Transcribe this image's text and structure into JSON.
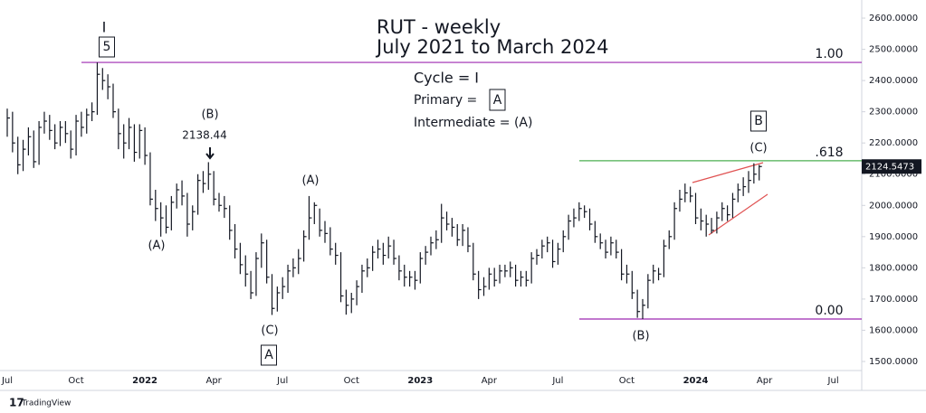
{
  "chart_data": {
    "type": "ohlc",
    "title": "RUT - weekly",
    "subtitle": "July 2021 to March 2024",
    "legend_lines": [
      "Cycle = I",
      "Primary =",
      "A",
      "Intermediate = (A)"
    ],
    "annotations": [
      "I",
      "5",
      "(B)",
      "(A)",
      "(C)",
      "A",
      "(A)",
      "(B)",
      "(C)",
      "B"
    ],
    "watermark": "TradingView",
    "color": "#131722",
    "grid": false,
    "categories": [
      "Jul",
      null,
      null,
      null,
      null,
      null,
      null,
      null,
      null,
      null,
      null,
      null,
      null,
      "Oct",
      null,
      null,
      null,
      null,
      null,
      null,
      null,
      null,
      null,
      null,
      null,
      null,
      "2022",
      null,
      null,
      null,
      null,
      null,
      null,
      null,
      null,
      null,
      null,
      null,
      null,
      "Apr",
      null,
      null,
      null,
      null,
      null,
      null,
      null,
      null,
      null,
      null,
      null,
      null,
      "Jul",
      null,
      null,
      null,
      null,
      null,
      null,
      null,
      null,
      null,
      null,
      null,
      null,
      "Oct",
      null,
      null,
      null,
      null,
      null,
      null,
      null,
      null,
      null,
      null,
      null,
      null,
      "2023",
      null,
      null,
      null,
      null,
      null,
      null,
      null,
      null,
      null,
      null,
      null,
      null,
      "Apr",
      null,
      null,
      null,
      null,
      null,
      null,
      null,
      null,
      null,
      null,
      null,
      null,
      "Jul",
      null,
      null,
      null,
      null,
      null,
      null,
      null,
      null,
      null,
      null,
      null,
      null,
      "Oct",
      null,
      null,
      null,
      null,
      null,
      null,
      null,
      null,
      null,
      null,
      null,
      null,
      "2024",
      null,
      null,
      null,
      null,
      null,
      null,
      null,
      null,
      null,
      null,
      null,
      null,
      "Apr",
      null,
      null,
      null,
      null,
      null,
      null,
      null,
      null,
      null,
      null,
      null,
      null,
      "Jul",
      null,
      null,
      null
    ],
    "high": [
      2310,
      2300,
      2220,
      2210,
      2250,
      2240,
      2270,
      2300,
      2290,
      2260,
      2270,
      2270,
      2240,
      2290,
      2300,
      2310,
      2330,
      2458,
      2440,
      2420,
      2390,
      2310,
      2260,
      2280,
      2260,
      2260,
      2250,
      2170,
      2050,
      2010,
      2000,
      2030,
      2070,
      2080,
      2040,
      2000,
      2100,
      2110,
      2138.44,
      2110,
      2040,
      2030,
      2000,
      1940,
      1880,
      1840,
      1790,
      1850,
      1910,
      1890,
      1780,
      1740,
      1770,
      1810,
      1830,
      1860,
      1920,
      2030,
      2010,
      1990,
      1950,
      1930,
      1880,
      1850,
      1730,
      1720,
      1760,
      1810,
      1830,
      1870,
      1890,
      1880,
      1900,
      1890,
      1840,
      1810,
      1790,
      1790,
      1850,
      1870,
      1900,
      1920,
      2005,
      1980,
      1960,
      1940,
      1940,
      1930,
      1880,
      1790,
      1770,
      1800,
      1800,
      1810,
      1810,
      1820,
      1810,
      1790,
      1790,
      1850,
      1860,
      1890,
      1900,
      1890,
      1880,
      1920,
      1970,
      1990,
      2010,
      2000,
      1990,
      1950,
      1910,
      1890,
      1900,
      1890,
      1860,
      1810,
      1790,
      1730,
      1700,
      1780,
      1810,
      1800,
      1890,
      1920,
      2010,
      2050,
      2070,
      2060,
      2040,
      1990,
      1970,
      1960,
      1980,
      2010,
      2000,
      2040,
      2070,
      2090,
      2110,
      2135,
      2130,
      null,
      null,
      null,
      null,
      null,
      null,
      null,
      null,
      null,
      null,
      null,
      null,
      null,
      null,
      null,
      null,
      null
    ],
    "low": [
      2220,
      2170,
      2100,
      2110,
      2160,
      2120,
      2130,
      2230,
      2210,
      2180,
      2190,
      2200,
      2150,
      2160,
      2220,
      2230,
      2270,
      2290,
      2370,
      2340,
      2280,
      2180,
      2150,
      2180,
      2140,
      2150,
      2130,
      2000,
      1950,
      1900,
      1910,
      1920,
      1990,
      2000,
      1900,
      1920,
      1970,
      2040,
      2050,
      2000,
      1980,
      1960,
      1890,
      1830,
      1780,
      1740,
      1700,
      1710,
      1800,
      1750,
      1649,
      1660,
      1700,
      1720,
      1770,
      1780,
      1820,
      1890,
      1940,
      1900,
      1880,
      1840,
      1810,
      1690,
      1650,
      1655,
      1680,
      1720,
      1770,
      1790,
      1830,
      1810,
      1830,
      1810,
      1760,
      1740,
      1740,
      1730,
      1750,
      1810,
      1840,
      1860,
      1880,
      1920,
      1900,
      1870,
      1870,
      1850,
      1760,
      1700,
      1710,
      1730,
      1740,
      1750,
      1770,
      1770,
      1740,
      1740,
      1740,
      1750,
      1810,
      1830,
      1850,
      1800,
      1810,
      1850,
      1890,
      1930,
      1950,
      1960,
      1920,
      1880,
      1860,
      1830,
      1840,
      1830,
      1760,
      1750,
      1700,
      1640,
      1636,
      1670,
      1750,
      1760,
      1770,
      1860,
      1890,
      1980,
      2010,
      2010,
      1940,
      1920,
      1900,
      1910,
      1910,
      1950,
      1950,
      1960,
      2010,
      2030,
      2040,
      2070,
      2080,
      null,
      null,
      null,
      null,
      null,
      null,
      null,
      null,
      null,
      null,
      null,
      null,
      null,
      null,
      null,
      null,
      null
    ],
    "close": [
      2280,
      2200,
      2130,
      2180,
      2220,
      2140,
      2250,
      2270,
      2240,
      2200,
      2250,
      2230,
      2180,
      2270,
      2250,
      2290,
      2300,
      2420,
      2400,
      2380,
      2300,
      2230,
      2200,
      2250,
      2170,
      2240,
      2160,
      2020,
      1990,
      1960,
      1930,
      2010,
      2050,
      2030,
      1940,
      1980,
      2080,
      2070,
      2100,
      2020,
      2000,
      1990,
      1920,
      1860,
      1810,
      1780,
      1720,
      1830,
      1880,
      1770,
      1670,
      1720,
      1740,
      1790,
      1800,
      1830,
      1900,
      1960,
      2000,
      1920,
      1910,
      1860,
      1840,
      1710,
      1680,
      1700,
      1740,
      1790,
      1800,
      1850,
      1860,
      1840,
      1870,
      1830,
      1790,
      1770,
      1770,
      1760,
      1830,
      1850,
      1880,
      1890,
      1960,
      1940,
      1930,
      1890,
      1920,
      1870,
      1780,
      1730,
      1740,
      1780,
      1760,
      1790,
      1790,
      1800,
      1760,
      1770,
      1760,
      1830,
      1840,
      1870,
      1880,
      1820,
      1860,
      1900,
      1950,
      1960,
      1990,
      1980,
      1940,
      1900,
      1880,
      1850,
      1880,
      1850,
      1780,
      1780,
      1720,
      1660,
      1680,
      1760,
      1790,
      1780,
      1870,
      1900,
      1990,
      2020,
      2040,
      2030,
      1960,
      1950,
      1940,
      1920,
      1960,
      1990,
      1970,
      2020,
      2050,
      2060,
      2080,
      2100,
      2124.5473,
      null,
      null,
      null,
      null,
      null,
      null,
      null,
      null,
      null,
      null,
      null,
      null,
      null,
      null,
      null,
      null,
      null
    ],
    "levels": [
      {
        "label": "1.00",
        "value": 2458,
        "color": "#9c27b0"
      },
      {
        "label": ".618",
        "value": 2143,
        "color": "#4caf50"
      },
      {
        "label": "0.00",
        "value": 1636,
        "color": "#9c27b0"
      }
    ],
    "ylim": [
      1471,
      2658
    ],
    "yticks": [
      {
        "value": 1500,
        "label": "1500.0000"
      },
      {
        "value": 1600,
        "label": "1600.0000"
      },
      {
        "value": 1700,
        "label": "1700.0000"
      },
      {
        "value": 1800,
        "label": "1800.0000"
      },
      {
        "value": 1900,
        "label": "1900.0000"
      },
      {
        "value": 2000,
        "label": "2000.0000"
      },
      {
        "value": 2100,
        "label": "2100.0000"
      },
      {
        "value": 2200,
        "label": "2200.0000"
      },
      {
        "value": 2300,
        "label": "2300.0000"
      },
      {
        "value": 2400,
        "label": "2400.0000"
      },
      {
        "value": 2500,
        "label": "2500.0000"
      },
      {
        "value": 2600,
        "label": "2600.0000"
      }
    ]
  }
}
